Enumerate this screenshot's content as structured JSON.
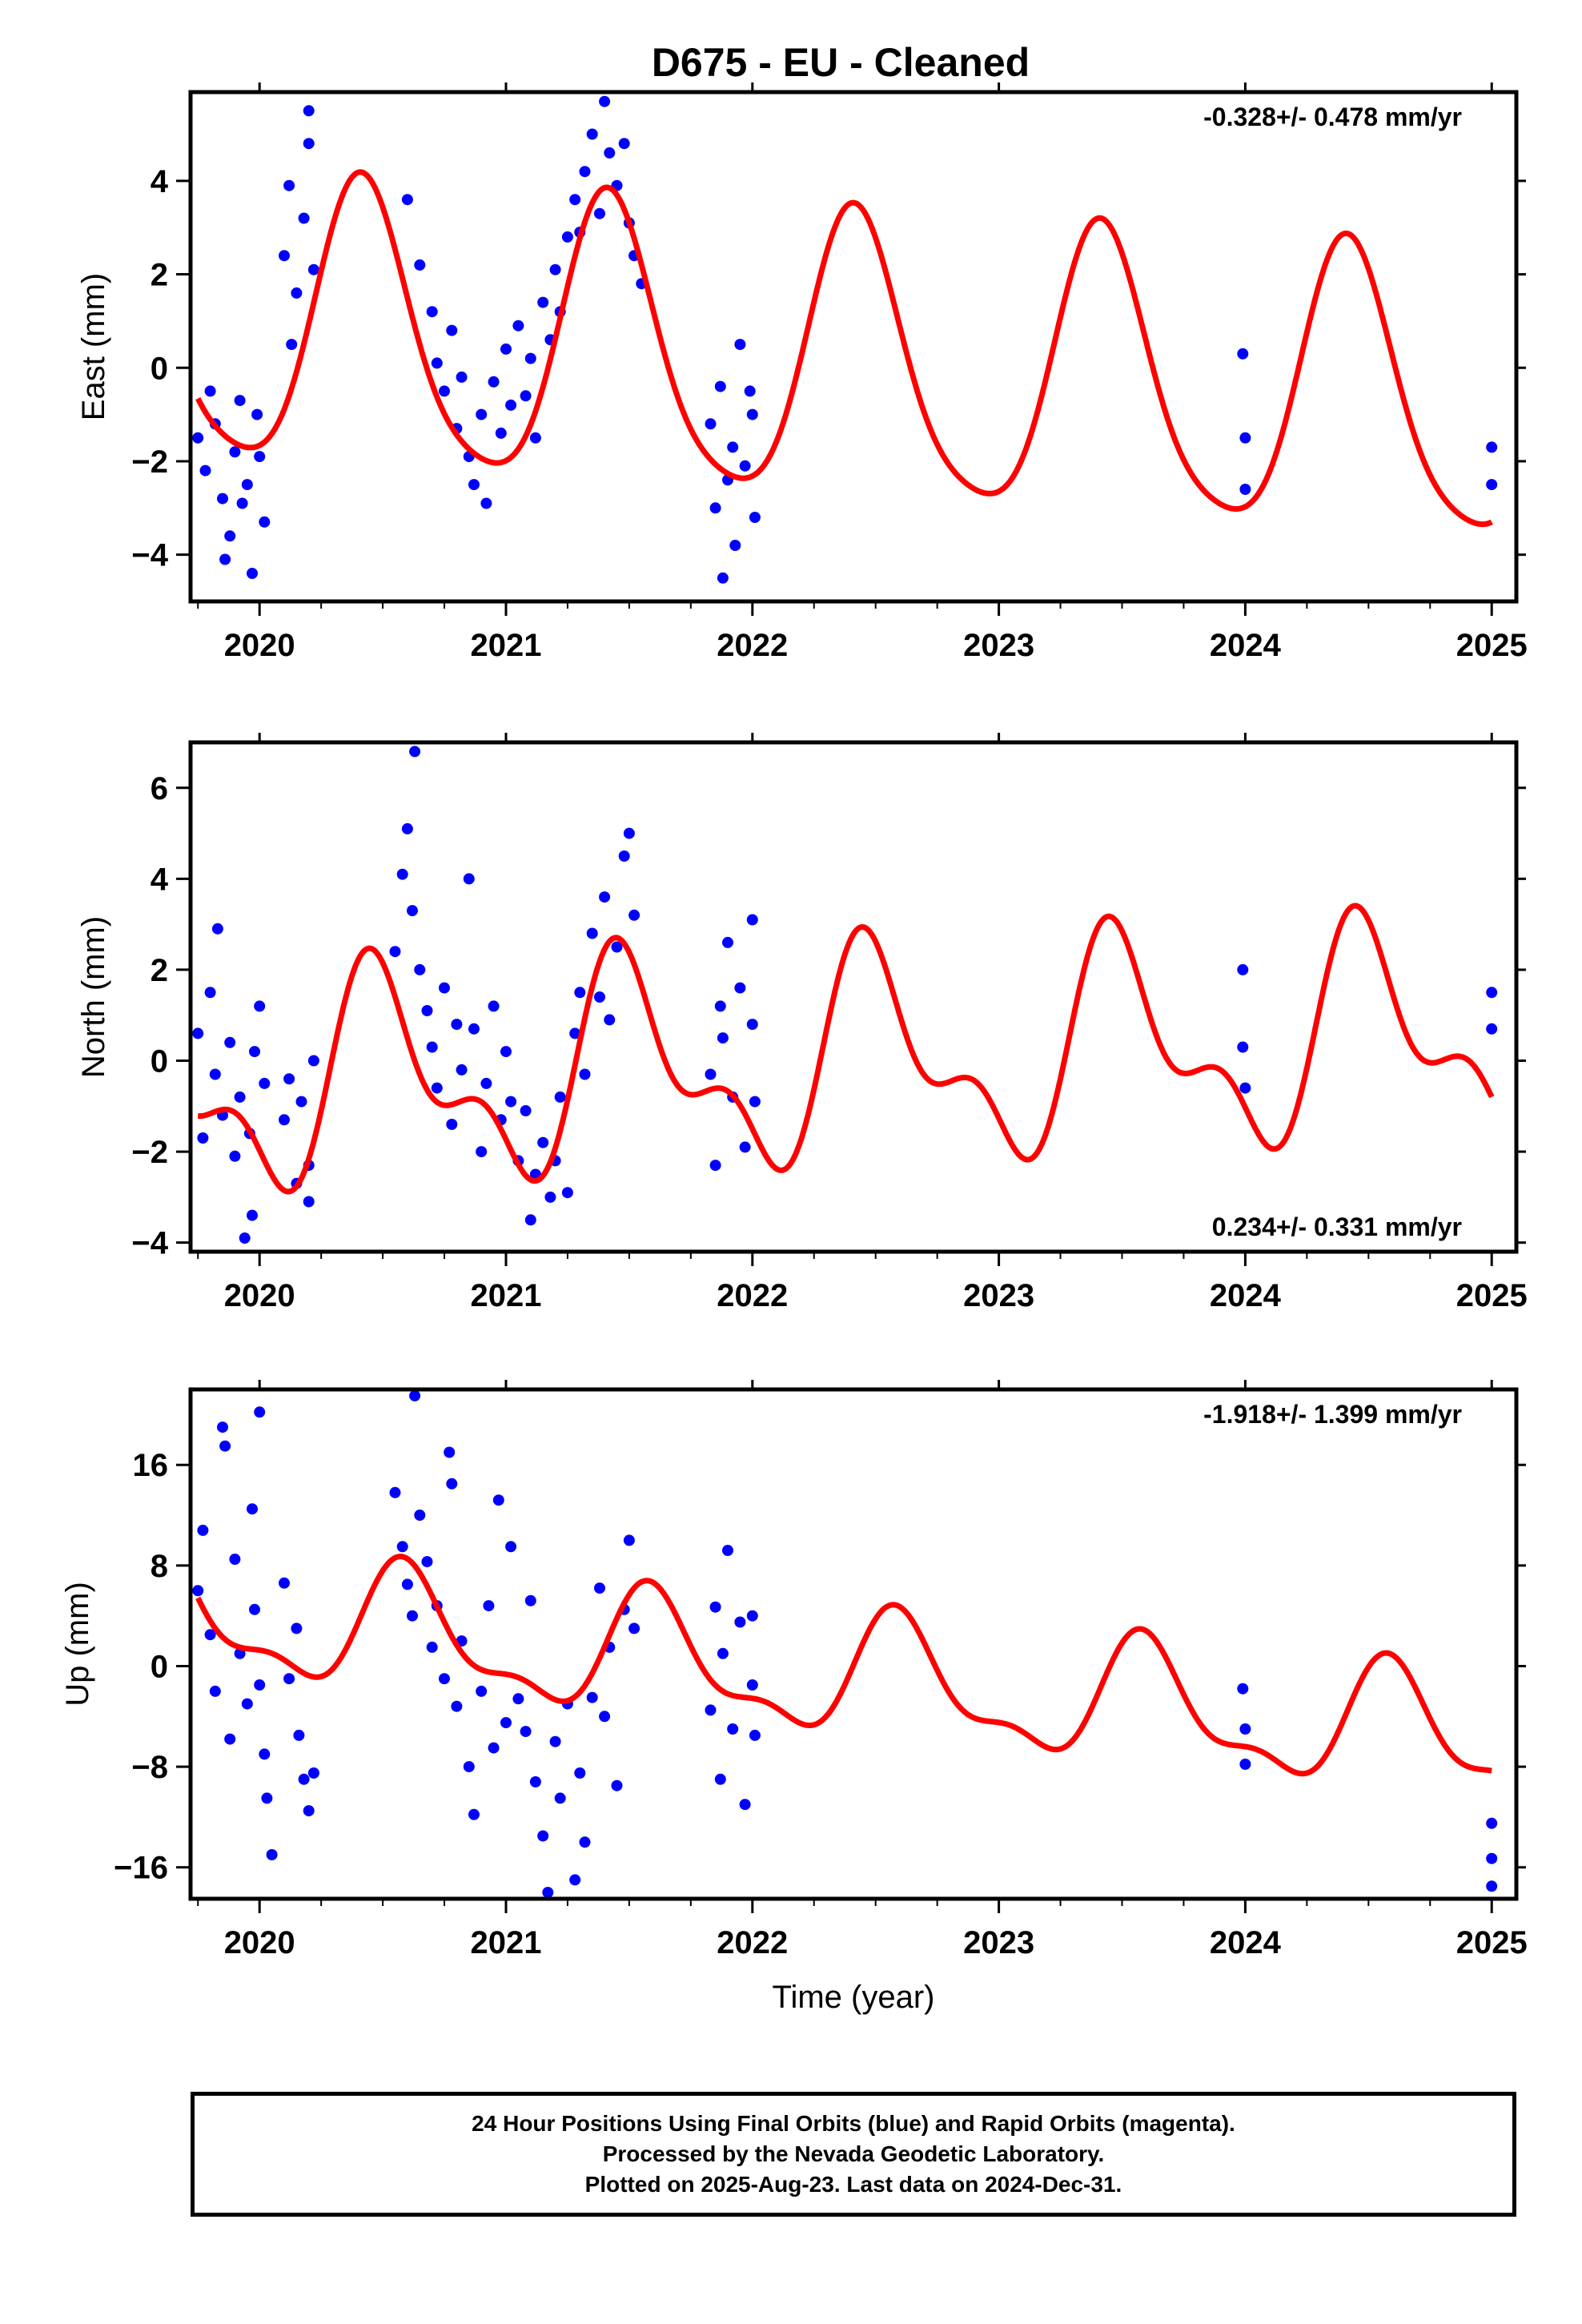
{
  "title": "D675  - EU - Cleaned",
  "colors": {
    "points": "#0000ff",
    "model": "#ff0000",
    "axes": "#000000"
  },
  "footer": {
    "line1": "24 Hour Positions Using Final Orbits (blue) and Rapid Orbits (magenta).",
    "line2": "Processed by the Nevada Geodetic Laboratory.",
    "line3": "Plotted on 2025-Aug-23. Last data on 2024-Dec-31."
  },
  "chart_data": [
    {
      "type": "scatter",
      "component": "east",
      "ylabel": "East (mm)",
      "xlabel": "",
      "rate_label": "-0.328+/- 0.478 mm/yr",
      "rate_position": "top-right",
      "xlim": [
        2019.72,
        2025.1
      ],
      "ylim": [
        -5.0,
        5.9
      ],
      "xticks": [
        2020,
        2021,
        2022,
        2023,
        2024,
        2025
      ],
      "yticks": [
        -4,
        -2,
        0,
        2,
        4
      ],
      "series": [
        {
          "points": [
            [
              2019.75,
              -1.5
            ],
            [
              2019.78,
              -2.2
            ],
            [
              2019.8,
              -0.5
            ],
            [
              2019.82,
              -1.2
            ],
            [
              2019.85,
              -2.8
            ],
            [
              2019.88,
              -3.6
            ],
            [
              2019.9,
              -1.8
            ],
            [
              2019.92,
              -0.7
            ],
            [
              2019.95,
              -2.5
            ],
            [
              2019.97,
              -4.4
            ],
            [
              2020.0,
              -1.9
            ],
            [
              2020.02,
              -3.3
            ],
            [
              2019.86,
              -4.1
            ],
            [
              2019.93,
              -2.9
            ],
            [
              2019.99,
              -1.0
            ],
            [
              2020.1,
              2.4
            ],
            [
              2020.12,
              3.9
            ],
            [
              2020.13,
              0.5
            ],
            [
              2020.15,
              1.6
            ],
            [
              2020.18,
              3.2
            ],
            [
              2020.2,
              4.8
            ],
            [
              2020.2,
              5.5
            ],
            [
              2020.22,
              2.1
            ],
            [
              2020.6,
              3.6
            ],
            [
              2020.65,
              2.2
            ],
            [
              2020.7,
              1.2
            ],
            [
              2020.72,
              0.1
            ],
            [
              2020.75,
              -0.5
            ],
            [
              2020.78,
              0.8
            ],
            [
              2020.8,
              -1.3
            ],
            [
              2020.82,
              -0.2
            ],
            [
              2020.85,
              -1.9
            ],
            [
              2020.87,
              -2.5
            ],
            [
              2020.9,
              -1.0
            ],
            [
              2020.92,
              -2.9
            ],
            [
              2020.95,
              -0.3
            ],
            [
              2020.98,
              -1.4
            ],
            [
              2021.0,
              0.4
            ],
            [
              2021.02,
              -0.8
            ],
            [
              2021.05,
              0.9
            ],
            [
              2021.08,
              -0.6
            ],
            [
              2021.1,
              0.2
            ],
            [
              2021.12,
              -1.5
            ],
            [
              2021.15,
              1.4
            ],
            [
              2021.18,
              0.6
            ],
            [
              2021.2,
              2.1
            ],
            [
              2021.22,
              1.2
            ],
            [
              2021.25,
              2.8
            ],
            [
              2021.28,
              3.6
            ],
            [
              2021.3,
              2.9
            ],
            [
              2021.32,
              4.2
            ],
            [
              2021.35,
              5.0
            ],
            [
              2021.38,
              3.3
            ],
            [
              2021.4,
              5.7
            ],
            [
              2021.42,
              4.6
            ],
            [
              2021.45,
              3.9
            ],
            [
              2021.48,
              4.8
            ],
            [
              2021.5,
              3.1
            ],
            [
              2021.52,
              2.4
            ],
            [
              2021.55,
              1.8
            ],
            [
              2021.83,
              -1.2
            ],
            [
              2021.85,
              -3.0
            ],
            [
              2021.87,
              -0.4
            ],
            [
              2021.88,
              -4.5
            ],
            [
              2021.9,
              -2.4
            ],
            [
              2021.92,
              -1.7
            ],
            [
              2021.93,
              -3.8
            ],
            [
              2021.95,
              0.5
            ],
            [
              2021.97,
              -2.1
            ],
            [
              2021.99,
              -0.5
            ],
            [
              2022.0,
              -1.0
            ],
            [
              2022.01,
              -3.2
            ],
            [
              2023.99,
              0.3
            ],
            [
              2024.0,
              -1.5
            ],
            [
              2024.0,
              -2.6
            ],
            [
              2025.0,
              -1.7
            ],
            [
              2025.0,
              -2.5
            ]
          ]
        }
      ],
      "model": {
        "mean": 0.05,
        "rate": -0.328,
        "annual_amp": 3.0,
        "annual_phase_peak": 2020.42,
        "semi_amp": 0.5,
        "semi_phase": 0.3
      }
    },
    {
      "type": "scatter",
      "component": "north",
      "ylabel": "North (mm)",
      "xlabel": "",
      "rate_label": "0.234+/- 0.331 mm/yr",
      "rate_position": "bottom-right",
      "xlim": [
        2019.72,
        2025.1
      ],
      "ylim": [
        -4.2,
        7.0
      ],
      "xticks": [
        2020,
        2021,
        2022,
        2023,
        2024,
        2025
      ],
      "yticks": [
        -4,
        -2,
        0,
        2,
        4,
        6
      ],
      "series": [
        {
          "points": [
            [
              2019.75,
              0.6
            ],
            [
              2019.77,
              -1.7
            ],
            [
              2019.8,
              1.5
            ],
            [
              2019.82,
              -0.3
            ],
            [
              2019.83,
              2.9
            ],
            [
              2019.85,
              -1.2
            ],
            [
              2019.88,
              0.4
            ],
            [
              2019.9,
              -2.1
            ],
            [
              2019.92,
              -0.8
            ],
            [
              2019.94,
              -3.9
            ],
            [
              2019.96,
              -1.6
            ],
            [
              2019.98,
              0.2
            ],
            [
              2020.0,
              1.2
            ],
            [
              2020.02,
              -0.5
            ],
            [
              2019.97,
              -3.4
            ],
            [
              2020.1,
              -1.3
            ],
            [
              2020.12,
              -0.4
            ],
            [
              2020.15,
              -2.7
            ],
            [
              2020.17,
              -0.9
            ],
            [
              2020.2,
              -2.3
            ],
            [
              2020.22,
              0.0
            ],
            [
              2020.2,
              -3.1
            ],
            [
              2020.55,
              2.4
            ],
            [
              2020.58,
              4.1
            ],
            [
              2020.6,
              5.1
            ],
            [
              2020.62,
              3.3
            ],
            [
              2020.63,
              6.8
            ],
            [
              2020.65,
              2.0
            ],
            [
              2020.68,
              1.1
            ],
            [
              2020.7,
              0.3
            ],
            [
              2020.72,
              -0.6
            ],
            [
              2020.75,
              1.6
            ],
            [
              2020.78,
              -1.4
            ],
            [
              2020.8,
              0.8
            ],
            [
              2020.82,
              -0.2
            ],
            [
              2020.85,
              4.0
            ],
            [
              2020.87,
              0.7
            ],
            [
              2020.9,
              -2.0
            ],
            [
              2020.92,
              -0.5
            ],
            [
              2020.95,
              1.2
            ],
            [
              2020.98,
              -1.3
            ],
            [
              2021.0,
              0.2
            ],
            [
              2021.02,
              -0.9
            ],
            [
              2021.05,
              -2.2
            ],
            [
              2021.08,
              -1.1
            ],
            [
              2021.1,
              -3.5
            ],
            [
              2021.12,
              -2.5
            ],
            [
              2021.15,
              -1.8
            ],
            [
              2021.18,
              -3.0
            ],
            [
              2021.2,
              -2.2
            ],
            [
              2021.22,
              -0.8
            ],
            [
              2021.25,
              -2.9
            ],
            [
              2021.28,
              0.6
            ],
            [
              2021.3,
              1.5
            ],
            [
              2021.32,
              -0.3
            ],
            [
              2021.35,
              2.8
            ],
            [
              2021.38,
              1.4
            ],
            [
              2021.4,
              3.6
            ],
            [
              2021.42,
              0.9
            ],
            [
              2021.45,
              2.5
            ],
            [
              2021.48,
              4.5
            ],
            [
              2021.5,
              5.0
            ],
            [
              2021.52,
              3.2
            ],
            [
              2021.83,
              -0.3
            ],
            [
              2021.85,
              -2.3
            ],
            [
              2021.87,
              1.2
            ],
            [
              2021.88,
              0.5
            ],
            [
              2021.9,
              2.6
            ],
            [
              2021.92,
              -0.8
            ],
            [
              2021.95,
              1.6
            ],
            [
              2021.97,
              -1.9
            ],
            [
              2022.0,
              0.8
            ],
            [
              2022.0,
              3.1
            ],
            [
              2022.01,
              -0.9
            ],
            [
              2023.99,
              2.0
            ],
            [
              2023.99,
              0.3
            ],
            [
              2024.0,
              -0.6
            ],
            [
              2025.0,
              1.5
            ],
            [
              2025.0,
              0.7
            ]
          ]
        }
      ],
      "model": {
        "mean": 0.0,
        "rate": 0.234,
        "annual_amp": 2.0,
        "annual_phase_peak": 2020.5,
        "semi_amp": 1.1,
        "semi_phase": 1.0
      }
    },
    {
      "type": "scatter",
      "component": "up",
      "ylabel": "Up (mm)",
      "xlabel": "Time (year)",
      "rate_label": "-1.918+/- 1.399 mm/yr",
      "rate_position": "top-right",
      "xlim": [
        2019.72,
        2025.1
      ],
      "ylim": [
        -18.5,
        22.0
      ],
      "xticks": [
        2020,
        2021,
        2022,
        2023,
        2024,
        2025
      ],
      "yticks": [
        -16,
        -8,
        0,
        8,
        16
      ],
      "series": [
        {
          "points": [
            [
              2019.75,
              6.0
            ],
            [
              2019.77,
              10.8
            ],
            [
              2019.8,
              2.5
            ],
            [
              2019.82,
              -2.0
            ],
            [
              2019.85,
              19.0
            ],
            [
              2019.86,
              17.5
            ],
            [
              2019.88,
              -5.8
            ],
            [
              2019.9,
              8.5
            ],
            [
              2019.92,
              1.0
            ],
            [
              2019.95,
              -3.0
            ],
            [
              2019.97,
              12.5
            ],
            [
              2019.98,
              4.5
            ],
            [
              2020.0,
              20.2
            ],
            [
              2020.0,
              -1.5
            ],
            [
              2020.02,
              -7.0
            ],
            [
              2020.03,
              -10.5
            ],
            [
              2020.05,
              -15.0
            ],
            [
              2020.1,
              6.6
            ],
            [
              2020.12,
              -1.0
            ],
            [
              2020.15,
              3.0
            ],
            [
              2020.16,
              -5.5
            ],
            [
              2020.18,
              -9.0
            ],
            [
              2020.2,
              -11.5
            ],
            [
              2020.22,
              -8.5
            ],
            [
              2020.55,
              13.8
            ],
            [
              2020.58,
              9.5
            ],
            [
              2020.6,
              6.5
            ],
            [
              2020.62,
              4.0
            ],
            [
              2020.63,
              21.5
            ],
            [
              2020.65,
              12.0
            ],
            [
              2020.68,
              8.3
            ],
            [
              2020.7,
              1.5
            ],
            [
              2020.72,
              4.8
            ],
            [
              2020.75,
              -1.0
            ],
            [
              2020.77,
              17.0
            ],
            [
              2020.78,
              14.5
            ],
            [
              2020.8,
              -3.2
            ],
            [
              2020.82,
              2.0
            ],
            [
              2020.85,
              -8.0
            ],
            [
              2020.87,
              -11.8
            ],
            [
              2020.9,
              -2.0
            ],
            [
              2020.93,
              4.8
            ],
            [
              2020.95,
              -6.5
            ],
            [
              2020.97,
              13.2
            ],
            [
              2021.0,
              -4.5
            ],
            [
              2021.02,
              9.5
            ],
            [
              2021.05,
              -2.6
            ],
            [
              2021.08,
              -5.2
            ],
            [
              2021.1,
              5.2
            ],
            [
              2021.12,
              -9.2
            ],
            [
              2021.15,
              -13.5
            ],
            [
              2021.17,
              -18.0
            ],
            [
              2021.2,
              -6.0
            ],
            [
              2021.22,
              -10.5
            ],
            [
              2021.25,
              -3.0
            ],
            [
              2021.28,
              -17.0
            ],
            [
              2021.3,
              -8.5
            ],
            [
              2021.32,
              -14.0
            ],
            [
              2021.35,
              -2.5
            ],
            [
              2021.38,
              6.2
            ],
            [
              2021.4,
              -4.0
            ],
            [
              2021.42,
              1.5
            ],
            [
              2021.45,
              -9.5
            ],
            [
              2021.48,
              4.5
            ],
            [
              2021.5,
              10.0
            ],
            [
              2021.52,
              3.0
            ],
            [
              2021.83,
              -3.5
            ],
            [
              2021.85,
              4.7
            ],
            [
              2021.87,
              -9.0
            ],
            [
              2021.88,
              1.0
            ],
            [
              2021.9,
              9.2
            ],
            [
              2021.92,
              -5.0
            ],
            [
              2021.95,
              3.5
            ],
            [
              2021.97,
              -11.0
            ],
            [
              2022.0,
              -1.5
            ],
            [
              2022.0,
              4.0
            ],
            [
              2022.01,
              -5.5
            ],
            [
              2023.99,
              -1.8
            ],
            [
              2024.0,
              -5.0
            ],
            [
              2024.0,
              -7.8
            ],
            [
              2025.0,
              -12.5
            ],
            [
              2025.0,
              -15.3
            ],
            [
              2025.0,
              -17.5
            ]
          ]
        }
      ],
      "model": {
        "mean": -1.0,
        "rate": -1.918,
        "annual_amp": 4.5,
        "annual_phase_peak": 2020.6,
        "semi_amp": 1.8,
        "semi_phase": 0.5
      }
    }
  ]
}
